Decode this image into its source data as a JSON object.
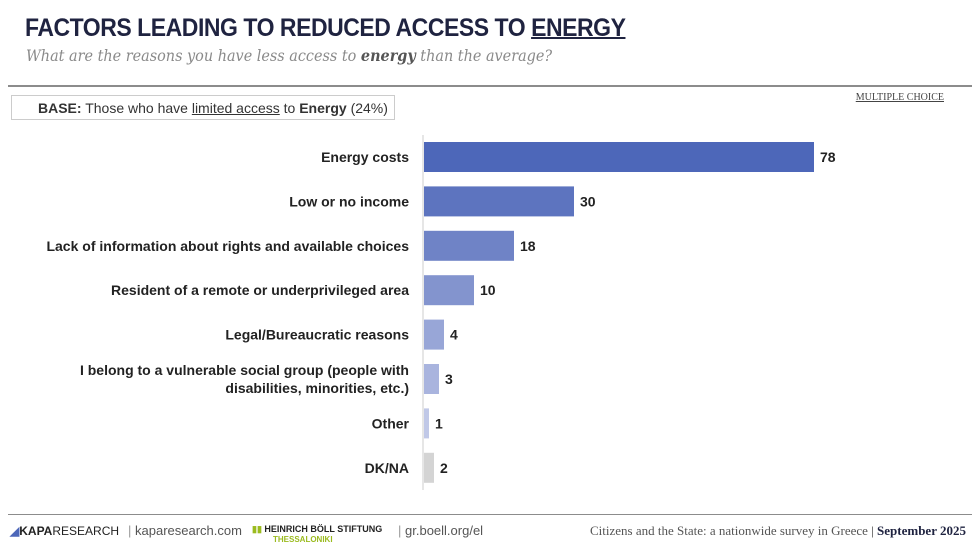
{
  "header": {
    "title_main": "FACTORS LEADING TO REDUCED ACCESS TO ",
    "title_emph": "ENERGY",
    "subtitle_pre": "What are the reasons you have less access to ",
    "subtitle_emph": "energy",
    "subtitle_post": " than the average?",
    "base_label": "BASE:",
    "base_pre": " Those who have ",
    "base_underline": "limited access",
    "base_mid": " to ",
    "base_emph": "Energy",
    "base_post": " (24%)",
    "multiple_choice": "MULTIPLE CHOICE"
  },
  "chart_data": {
    "type": "bar",
    "orientation": "horizontal",
    "categories": [
      [
        "Energy costs"
      ],
      [
        "Low or no income"
      ],
      [
        "Lack of information about rights and available choices"
      ],
      [
        "Resident of a remote or underprivileged area"
      ],
      [
        "Legal/Bureaucratic reasons"
      ],
      [
        "I belong to a vulnerable social group (people with",
        "disabilities, minorities, etc.)"
      ],
      [
        "Other"
      ],
      [
        "DK/NA"
      ]
    ],
    "values": [
      78,
      30,
      18,
      10,
      4,
      3,
      1,
      2
    ],
    "colors": [
      "#4d67b9",
      "#5d74bf",
      "#6f83c6",
      "#8394ce",
      "#98a6d7",
      "#a9b4de",
      "#c0c8e7",
      "#d4d4d4"
    ],
    "xlim": [
      0,
      100
    ],
    "grid": false
  },
  "footer": {
    "kapa_brand": "KAPA",
    "kapa_brand2": "RESEARCH",
    "kapa_url": "kaparesearch.com",
    "hbs_name": "HEINRICH BÖLL STIFTUNG",
    "hbs_city": "THESSALONIKI",
    "hbs_url": "gr.boell.org/el",
    "survey": "Citizens and the State: a nationwide survey in Greece",
    "date": "September 2025"
  }
}
